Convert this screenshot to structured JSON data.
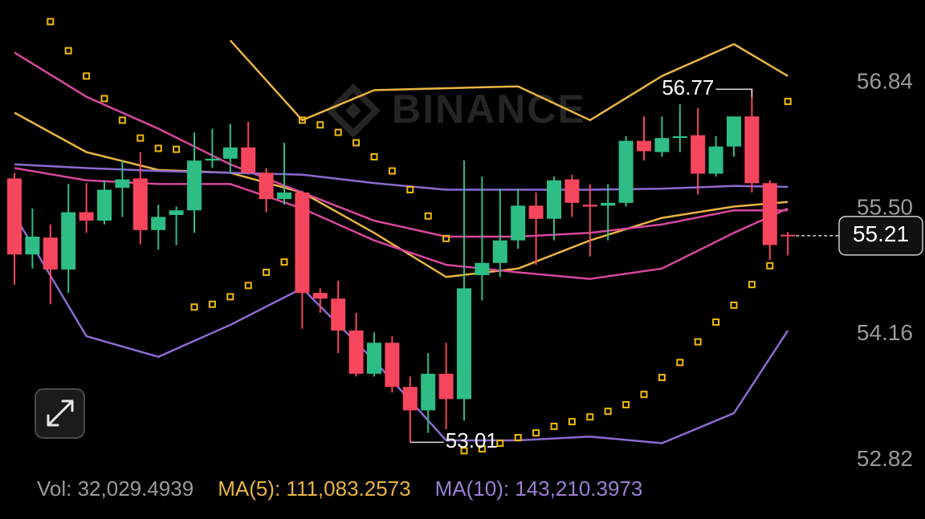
{
  "chart_data": {
    "type": "candlestick",
    "watermark": "BINANCE",
    "up_color": "#2ebd85",
    "down_color": "#f6465d",
    "open": [
      55.82,
      55.01,
      55.19,
      54.85,
      55.46,
      55.37,
      55.72,
      55.82,
      55.27,
      55.43,
      55.48,
      56.01,
      56.03,
      56.15,
      55.88,
      55.6,
      55.67,
      54.6,
      54.54,
      54.2,
      53.74,
      54.07,
      53.6,
      53.35,
      53.74,
      53.47,
      54.79,
      54.92,
      55.16,
      55.53,
      55.39,
      55.81,
      55.54,
      55.53,
      55.56,
      56.22,
      56.1,
      56.25,
      56.28,
      55.87,
      56.16,
      56.48,
      55.77,
      55.22
    ],
    "high": [
      55.88,
      55.5,
      55.33,
      55.76,
      55.77,
      55.8,
      56.01,
      56.1,
      55.54,
      55.52,
      56.31,
      56.35,
      56.4,
      56.42,
      55.93,
      56.2,
      55.69,
      54.65,
      54.73,
      54.39,
      54.18,
      54.14,
      53.71,
      53.96,
      54.07,
      56.01,
      55.84,
      55.71,
      55.71,
      55.67,
      55.84,
      55.86,
      55.76,
      55.76,
      56.27,
      56.48,
      56.48,
      56.61,
      56.57,
      56.27,
      56.48,
      56.77,
      55.8,
      55.25
    ],
    "low": [
      54.69,
      54.86,
      54.48,
      54.6,
      55.24,
      55.33,
      55.41,
      55.12,
      55.06,
      55.11,
      55.24,
      55.93,
      55.88,
      55.86,
      55.46,
      55.54,
      54.22,
      54.39,
      53.96,
      53.71,
      53.71,
      53.54,
      53.01,
      53.11,
      53.15,
      53.24,
      54.52,
      54.77,
      55.07,
      54.9,
      55.16,
      55.41,
      54.99,
      55.16,
      55.52,
      56.01,
      56.05,
      56.1,
      55.65,
      55.84,
      56.05,
      55.67,
      54.95,
      55.0
    ],
    "close": [
      55.01,
      55.2,
      54.85,
      55.46,
      55.37,
      55.7,
      55.81,
      55.27,
      55.41,
      55.48,
      56.01,
      56.03,
      56.15,
      55.88,
      55.6,
      55.67,
      54.6,
      54.54,
      54.2,
      53.74,
      54.07,
      53.6,
      53.35,
      53.74,
      53.47,
      54.65,
      54.92,
      55.16,
      55.53,
      55.39,
      55.8,
      55.56,
      55.52,
      55.56,
      56.22,
      56.11,
      56.25,
      56.27,
      55.87,
      56.16,
      56.48,
      55.77,
      55.11,
      55.21
    ],
    "sar": {
      "color": "#f0b90b",
      "values": [
        null,
        null,
        57.49,
        57.18,
        56.91,
        56.67,
        56.44,
        56.25,
        56.14,
        56.13,
        54.45,
        54.48,
        54.56,
        54.68,
        54.82,
        54.93,
        56.44,
        56.39,
        56.31,
        56.2,
        56.05,
        55.9,
        55.7,
        55.42,
        55.18,
        52.92,
        52.94,
        53.0,
        53.06,
        53.11,
        53.18,
        53.23,
        53.28,
        53.34,
        53.41,
        53.52,
        53.7,
        53.86,
        54.08,
        54.29,
        54.47,
        54.69,
        54.89,
        56.64
      ]
    },
    "overlays": [
      {
        "color": "#e9b441",
        "x": [
          0,
          4,
          8,
          12,
          16,
          20,
          24,
          28,
          32,
          36,
          40,
          43
        ],
        "values": [
          null,
          null,
          null,
          57.29,
          56.44,
          56.76,
          56.78,
          56.8,
          56.44,
          56.91,
          57.25,
          56.91
        ]
      },
      {
        "color": "#e9b441",
        "x": [
          0,
          4,
          8,
          12,
          16,
          20,
          24,
          28,
          32,
          36,
          40,
          43
        ],
        "values": [
          56.52,
          56.1,
          55.91,
          55.88,
          55.67,
          55.24,
          54.77,
          54.86,
          55.16,
          55.4,
          55.52,
          55.57
        ]
      },
      {
        "color": "#d9479e",
        "x": [
          0,
          4,
          8,
          12,
          16,
          20,
          24,
          28,
          32,
          36,
          40,
          43
        ],
        "values": [
          57.16,
          56.69,
          56.35,
          55.97,
          55.67,
          55.37,
          55.2,
          55.2,
          55.24,
          55.33,
          55.48,
          55.48
        ]
      },
      {
        "color": "#d9479e",
        "x": [
          0,
          4,
          8,
          12,
          16,
          20,
          24,
          28,
          32,
          36,
          40,
          43
        ],
        "values": [
          55.93,
          55.8,
          55.76,
          55.76,
          55.5,
          55.16,
          54.9,
          54.82,
          54.75,
          54.86,
          55.24,
          55.5
        ]
      },
      {
        "color": "#8c6bd0",
        "x": [
          0,
          4,
          8,
          12,
          16,
          20,
          24,
          28,
          32,
          36,
          40,
          43
        ],
        "values": [
          55.97,
          55.93,
          55.9,
          55.88,
          55.86,
          55.77,
          55.7,
          55.7,
          55.7,
          55.71,
          55.74,
          55.73
        ]
      },
      {
        "color": "#8c6bd0",
        "x": [
          0,
          4,
          8,
          12,
          16,
          20,
          24,
          28,
          32,
          36,
          40,
          43
        ],
        "values": [
          55.43,
          54.14,
          53.92,
          54.26,
          54.65,
          53.88,
          53.03,
          53.03,
          53.07,
          53.0,
          53.32,
          54.2
        ]
      }
    ],
    "current_price": 55.21,
    "ylim": [
      52.68,
      57.72
    ],
    "yticks": [
      56.84,
      {
        "value": 55.5,
        "label": "55.50"
      },
      54.16,
      52.82
    ],
    "footer": [
      {
        "text": "Vol: 32,029.4939",
        "color": "#9a9a9a"
      },
      {
        "text": "MA(5): 111,083.2573",
        "color": "#e9b441"
      },
      {
        "text": "MA(10): 143,210.3973",
        "color": "#9b7fd4"
      }
    ]
  }
}
